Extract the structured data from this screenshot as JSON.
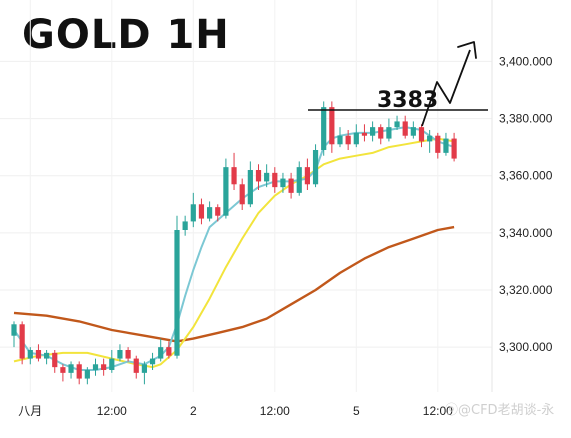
{
  "title": "GOLD 1H",
  "watermark": "ⓞ@CFD老胡谈-永",
  "colors": {
    "up": "#2aa49a",
    "down": "#e23b49",
    "ma_fast": "#7cc8d4",
    "ma_mid": "#f2e43c",
    "ma_slow": "#c1581b",
    "level_line": "#111111",
    "arrow": "#111111"
  },
  "chart_data": {
    "type": "candlestick",
    "ylim": [
      3285,
      3411
    ],
    "y_ticks": [
      "3,300.000",
      "3,320.000",
      "3,340.000",
      "3,360.000",
      "3,380.000",
      "3,400.000"
    ],
    "y_tick_values": [
      3300,
      3320,
      3340,
      3360,
      3380,
      3400
    ],
    "x_tick_labels": [
      {
        "label": "八月",
        "bar": 2
      },
      {
        "label": "12:00",
        "bar": 12
      },
      {
        "label": "2",
        "bar": 22
      },
      {
        "label": "12:00",
        "bar": 32
      },
      {
        "label": "5",
        "bar": 42
      },
      {
        "label": "12:00",
        "bar": 52
      }
    ],
    "candles": [
      [
        3304,
        3308,
        3300,
        3309
      ],
      [
        3308,
        3296,
        3294,
        3309
      ],
      [
        3296,
        3299,
        3294,
        3300
      ],
      [
        3299,
        3296,
        3295,
        3301
      ],
      [
        3296,
        3298,
        3294,
        3299
      ],
      [
        3298,
        3293,
        3291,
        3299
      ],
      [
        3293,
        3291,
        3288,
        3294
      ],
      [
        3291,
        3294,
        3289,
        3295
      ],
      [
        3294,
        3289,
        3287,
        3295
      ],
      [
        3289,
        3292,
        3287,
        3293
      ],
      [
        3292,
        3294,
        3290,
        3296
      ],
      [
        3294,
        3292,
        3290,
        3296
      ],
      [
        3292,
        3296,
        3291,
        3299
      ],
      [
        3296,
        3299,
        3295,
        3301
      ],
      [
        3299,
        3296,
        3295,
        3300
      ],
      [
        3296,
        3291,
        3289,
        3297
      ],
      [
        3291,
        3294,
        3287,
        3295
      ],
      [
        3294,
        3296,
        3292,
        3298
      ],
      [
        3296,
        3300,
        3295,
        3303
      ],
      [
        3300,
        3297,
        3296,
        3302
      ],
      [
        3297,
        3341,
        3296,
        3346
      ],
      [
        3341,
        3344,
        3339,
        3346
      ],
      [
        3344,
        3350,
        3342,
        3354
      ],
      [
        3350,
        3345,
        3343,
        3352
      ],
      [
        3345,
        3349,
        3344,
        3351
      ],
      [
        3349,
        3346,
        3344,
        3350
      ],
      [
        3346,
        3363,
        3345,
        3366
      ],
      [
        3363,
        3357,
        3355,
        3368
      ],
      [
        3357,
        3350,
        3348,
        3359
      ],
      [
        3350,
        3362,
        3349,
        3365
      ],
      [
        3362,
        3358,
        3355,
        3364
      ],
      [
        3358,
        3361,
        3356,
        3364
      ],
      [
        3361,
        3356,
        3354,
        3363
      ],
      [
        3356,
        3359,
        3354,
        3361
      ],
      [
        3359,
        3354,
        3352,
        3361
      ],
      [
        3354,
        3363,
        3353,
        3365
      ],
      [
        3363,
        3357,
        3355,
        3366
      ],
      [
        3357,
        3369,
        3356,
        3371
      ],
      [
        3369,
        3384,
        3367,
        3386
      ],
      [
        3384,
        3371,
        3368,
        3386
      ],
      [
        3371,
        3374,
        3370,
        3377
      ],
      [
        3374,
        3371,
        3369,
        3376
      ],
      [
        3371,
        3375,
        3370,
        3378
      ],
      [
        3375,
        3374,
        3372,
        3378
      ],
      [
        3374,
        3377,
        3372,
        3379
      ],
      [
        3377,
        3373,
        3371,
        3378
      ],
      [
        3373,
        3377,
        3372,
        3380
      ],
      [
        3377,
        3379,
        3376,
        3381
      ],
      [
        3379,
        3374,
        3373,
        3381
      ],
      [
        3374,
        3377,
        3373,
        3379
      ],
      [
        3377,
        3372,
        3370,
        3378
      ],
      [
        3372,
        3374,
        3368,
        3376
      ],
      [
        3374,
        3368,
        3366,
        3375
      ],
      [
        3368,
        3373,
        3367,
        3375
      ],
      [
        3373,
        3366,
        3365,
        3375
      ]
    ],
    "ma_fast": [
      [
        0,
        3306
      ],
      [
        2,
        3298
      ],
      [
        4,
        3297
      ],
      [
        6,
        3294
      ],
      [
        8,
        3292
      ],
      [
        10,
        3292
      ],
      [
        12,
        3293
      ],
      [
        14,
        3295
      ],
      [
        16,
        3294
      ],
      [
        18,
        3297
      ],
      [
        19,
        3300
      ],
      [
        20,
        3308
      ],
      [
        21,
        3318
      ],
      [
        22,
        3327
      ],
      [
        23,
        3335
      ],
      [
        24,
        3342
      ],
      [
        26,
        3347
      ],
      [
        28,
        3352
      ],
      [
        30,
        3356
      ],
      [
        32,
        3358
      ],
      [
        34,
        3358
      ],
      [
        36,
        3359
      ],
      [
        37,
        3362
      ],
      [
        38,
        3370
      ],
      [
        39,
        3373
      ],
      [
        40,
        3374
      ],
      [
        42,
        3375
      ],
      [
        44,
        3375
      ],
      [
        46,
        3376
      ],
      [
        48,
        3377
      ],
      [
        50,
        3376
      ],
      [
        52,
        3372
      ],
      [
        54,
        3370
      ]
    ],
    "ma_mid": [
      [
        0,
        3295
      ],
      [
        3,
        3297
      ],
      [
        6,
        3298
      ],
      [
        9,
        3298
      ],
      [
        12,
        3296
      ],
      [
        15,
        3294
      ],
      [
        17,
        3293
      ],
      [
        18,
        3294
      ],
      [
        20,
        3299
      ],
      [
        22,
        3307
      ],
      [
        24,
        3317
      ],
      [
        26,
        3328
      ],
      [
        28,
        3338
      ],
      [
        30,
        3347
      ],
      [
        32,
        3353
      ],
      [
        34,
        3357
      ],
      [
        36,
        3360
      ],
      [
        38,
        3364
      ],
      [
        40,
        3366
      ],
      [
        42,
        3367
      ],
      [
        44,
        3368
      ],
      [
        46,
        3370
      ],
      [
        48,
        3371
      ],
      [
        50,
        3372
      ],
      [
        52,
        3373
      ],
      [
        54,
        3372
      ]
    ],
    "ma_slow": [
      [
        0,
        3312
      ],
      [
        4,
        3311
      ],
      [
        8,
        3309
      ],
      [
        12,
        3306
      ],
      [
        16,
        3304
      ],
      [
        20,
        3302
      ],
      [
        22,
        3303
      ],
      [
        25,
        3305
      ],
      [
        28,
        3307
      ],
      [
        31,
        3310
      ],
      [
        34,
        3315
      ],
      [
        37,
        3320
      ],
      [
        40,
        3326
      ],
      [
        43,
        3331
      ],
      [
        46,
        3335
      ],
      [
        49,
        3338
      ],
      [
        52,
        3341
      ],
      [
        54,
        3342
      ]
    ],
    "annotations": {
      "level_value": 3383,
      "level_label": "3383"
    }
  }
}
